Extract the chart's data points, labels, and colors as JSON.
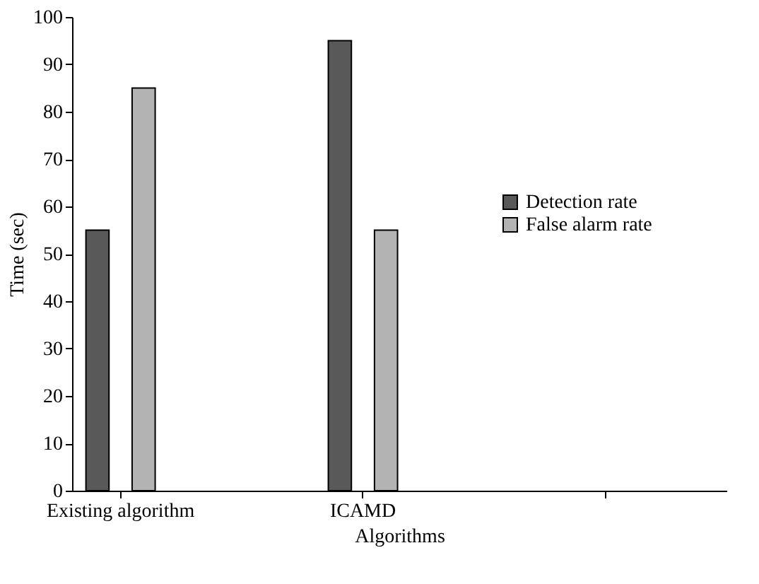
{
  "chart_data": {
    "type": "bar",
    "xlabel": "Algorithms",
    "ylabel": "Time (sec)",
    "categories": [
      "Existing algorithm",
      "ICAMD",
      null
    ],
    "series": [
      {
        "name": "Detection rate",
        "color": "#595959",
        "values": [
          55,
          95,
          null
        ]
      },
      {
        "name": "False alarm rate",
        "color": "#b3b3b3",
        "values": [
          85,
          55,
          null
        ]
      }
    ],
    "ylim": [
      0,
      100
    ],
    "yticks": [
      0,
      10,
      20,
      30,
      40,
      50,
      60,
      70,
      80,
      90,
      100
    ],
    "grid": false,
    "legend": "right"
  }
}
